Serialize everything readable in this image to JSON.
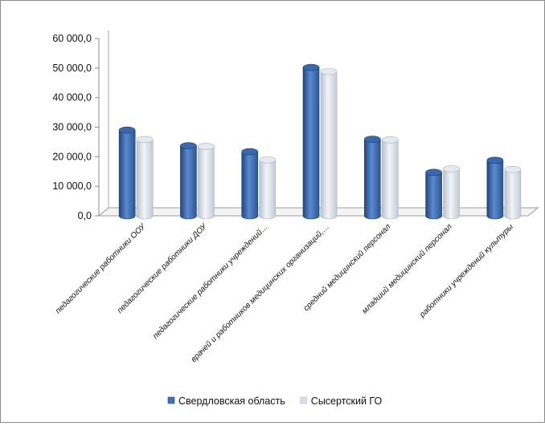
{
  "chart_data": {
    "type": "bar",
    "title": "",
    "xlabel": "",
    "ylabel": "",
    "ylim": [
      0,
      60000
    ],
    "yticks": [
      "0,0",
      "10 000,0",
      "20 000,0",
      "30 000,0",
      "40 000,0",
      "50 000,0",
      "60 000,0"
    ],
    "categories": [
      "педагогические работники ООУ",
      "педагогические работники ДОУ",
      "педагогические работники учреждений…",
      "врачей и работников медицинских организаций,…",
      "средний медицинский персонал",
      "младший медицинский персонал",
      "работники учреждений культуры"
    ],
    "series": [
      {
        "name": "Свердловская область",
        "color": "#3f6fb8",
        "values": [
          29000,
          23700,
          21700,
          50200,
          25900,
          14700,
          18800
        ]
      },
      {
        "name": "Сысертский ГО",
        "color": "#d8dde8",
        "values": [
          25800,
          23500,
          18900,
          48800,
          25700,
          15900,
          15700
        ]
      }
    ],
    "legend_position": "bottom",
    "grid": false,
    "three_d": true
  }
}
